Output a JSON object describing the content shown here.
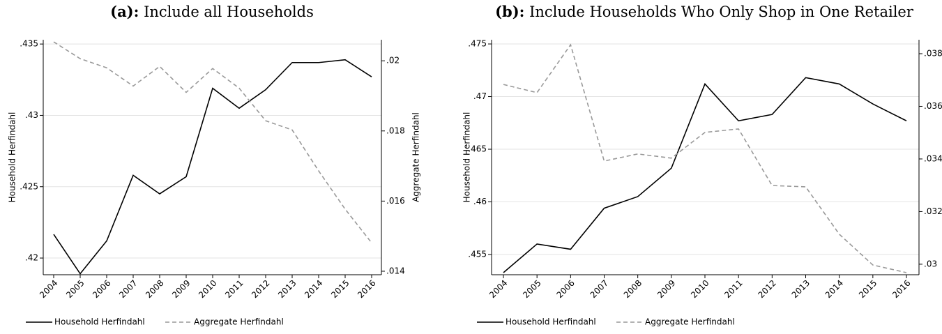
{
  "chart_data": [
    {
      "type": "line",
      "label": "(a):",
      "title": "Include all Households",
      "categories": [
        "2004",
        "2005",
        "2006",
        "2007",
        "2008",
        "2009",
        "2010",
        "2011",
        "2012",
        "2013",
        "2014",
        "2015",
        "2016"
      ],
      "y_label": "Household Herfindahl",
      "y2_label": "Aggregate Herfindahl",
      "ylim": [
        0.41883,
        0.4353
      ],
      "yticks": [
        {
          "value": 0.42,
          "label": ".42"
        },
        {
          "value": 0.425,
          "label": ".425"
        },
        {
          "value": 0.43,
          "label": ".43"
        },
        {
          "value": 0.435,
          "label": ".435"
        }
      ],
      "y2lim": [
        0.0139,
        0.0206
      ],
      "y2ticks": [
        {
          "value": 0.014,
          "label": ".014"
        },
        {
          "value": 0.016,
          "label": ".016"
        },
        {
          "value": 0.018,
          "label": ".018"
        },
        {
          "value": 0.02,
          "label": ".02"
        }
      ],
      "grid": true,
      "series": [
        {
          "name": "Household Herfindahl",
          "color": "#000000",
          "dash": false,
          "values": [
            0.42166,
            0.4189,
            0.4212,
            0.4258,
            0.4245,
            0.4257,
            0.4319,
            0.4305,
            0.4318,
            0.4337,
            0.4337,
            0.4339,
            0.4327
          ]
        },
        {
          "name": "Aggregate Herfindahl",
          "color": "#999999",
          "dash": true,
          "axis": "y2",
          "values": [
            0.02054,
            0.02006,
            0.0198,
            0.01928,
            0.01984,
            0.0191,
            0.01978,
            0.01922,
            0.01829,
            0.01803,
            0.01686,
            0.01577,
            0.01481
          ]
        }
      ]
    },
    {
      "type": "line",
      "label": "(b):",
      "title": "Include Households Who Only Shop in One Retailer",
      "categories": [
        "2004",
        "2005",
        "2006",
        "2007",
        "2008",
        "2009",
        "2010",
        "2011",
        "2012",
        "2013",
        "2014",
        "2015",
        "2016"
      ],
      "y_label": "Household Herfindahl",
      "y2_label": "Aggregate Herfindahl",
      "ylim": [
        0.45308,
        0.4754
      ],
      "yticks": [
        {
          "value": 0.455,
          "label": ".455"
        },
        {
          "value": 0.46,
          "label": ".46"
        },
        {
          "value": 0.465,
          "label": ".465"
        },
        {
          "value": 0.47,
          "label": ".47"
        },
        {
          "value": 0.475,
          "label": ".475"
        }
      ],
      "y2lim": [
        0.0296,
        0.03853
      ],
      "y2ticks": [
        {
          "value": 0.03,
          "label": ".03"
        },
        {
          "value": 0.032,
          "label": ".032"
        },
        {
          "value": 0.034,
          "label": ".034"
        },
        {
          "value": 0.036,
          "label": ".036"
        },
        {
          "value": 0.038,
          "label": ".038"
        }
      ],
      "grid": true,
      "series": [
        {
          "name": "Household Herfindahl",
          "color": "#000000",
          "dash": false,
          "values": [
            0.45328,
            0.456,
            0.4555,
            0.4594,
            0.4605,
            0.4632,
            0.4712,
            0.4677,
            0.4683,
            0.4718,
            0.4712,
            0.4693,
            0.4677
          ]
        },
        {
          "name": "Aggregate Herfindahl",
          "color": "#999999",
          "dash": true,
          "axis": "y2",
          "values": [
            0.03683,
            0.03652,
            0.03834,
            0.03392,
            0.03419,
            0.03403,
            0.03501,
            0.03514,
            0.03299,
            0.03294,
            0.03114,
            0.02997,
            0.02968
          ]
        }
      ]
    }
  ]
}
